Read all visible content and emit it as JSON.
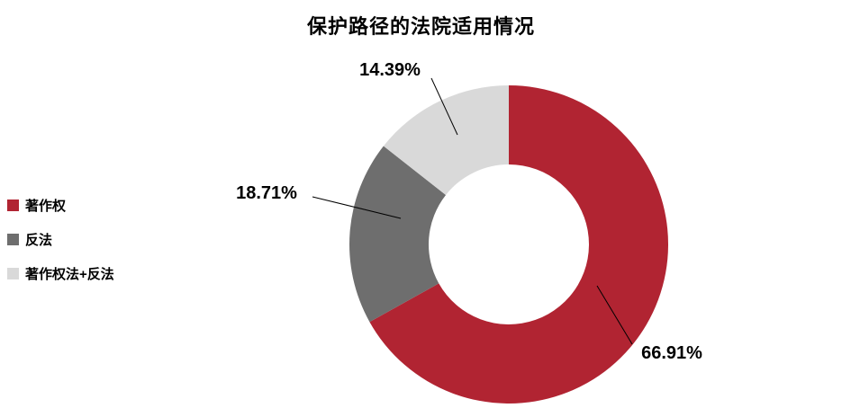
{
  "title": "保护路径的法院适用情况",
  "legend": {
    "items": [
      {
        "label": "著作权",
        "color": "#B12432"
      },
      {
        "label": "反法",
        "color": "#6E6E6E"
      },
      {
        "label": "著作权法+反法",
        "color": "#D9D9D9"
      }
    ]
  },
  "chart_data": {
    "type": "pie",
    "subtype": "donut",
    "title": "保护路径的法院适用情况",
    "categories": [
      "著作权",
      "反法",
      "著作权法+反法"
    ],
    "values": [
      66.91,
      18.71,
      14.39
    ],
    "labels": [
      "66.91%",
      "18.71%",
      "14.39%"
    ],
    "colors": [
      "#B12432",
      "#6E6E6E",
      "#D9D9D9"
    ],
    "legend_position": "left",
    "start_angle_deg": 0,
    "direction": "clockwise",
    "inner_radius_ratio": 0.5,
    "grid": false
  }
}
